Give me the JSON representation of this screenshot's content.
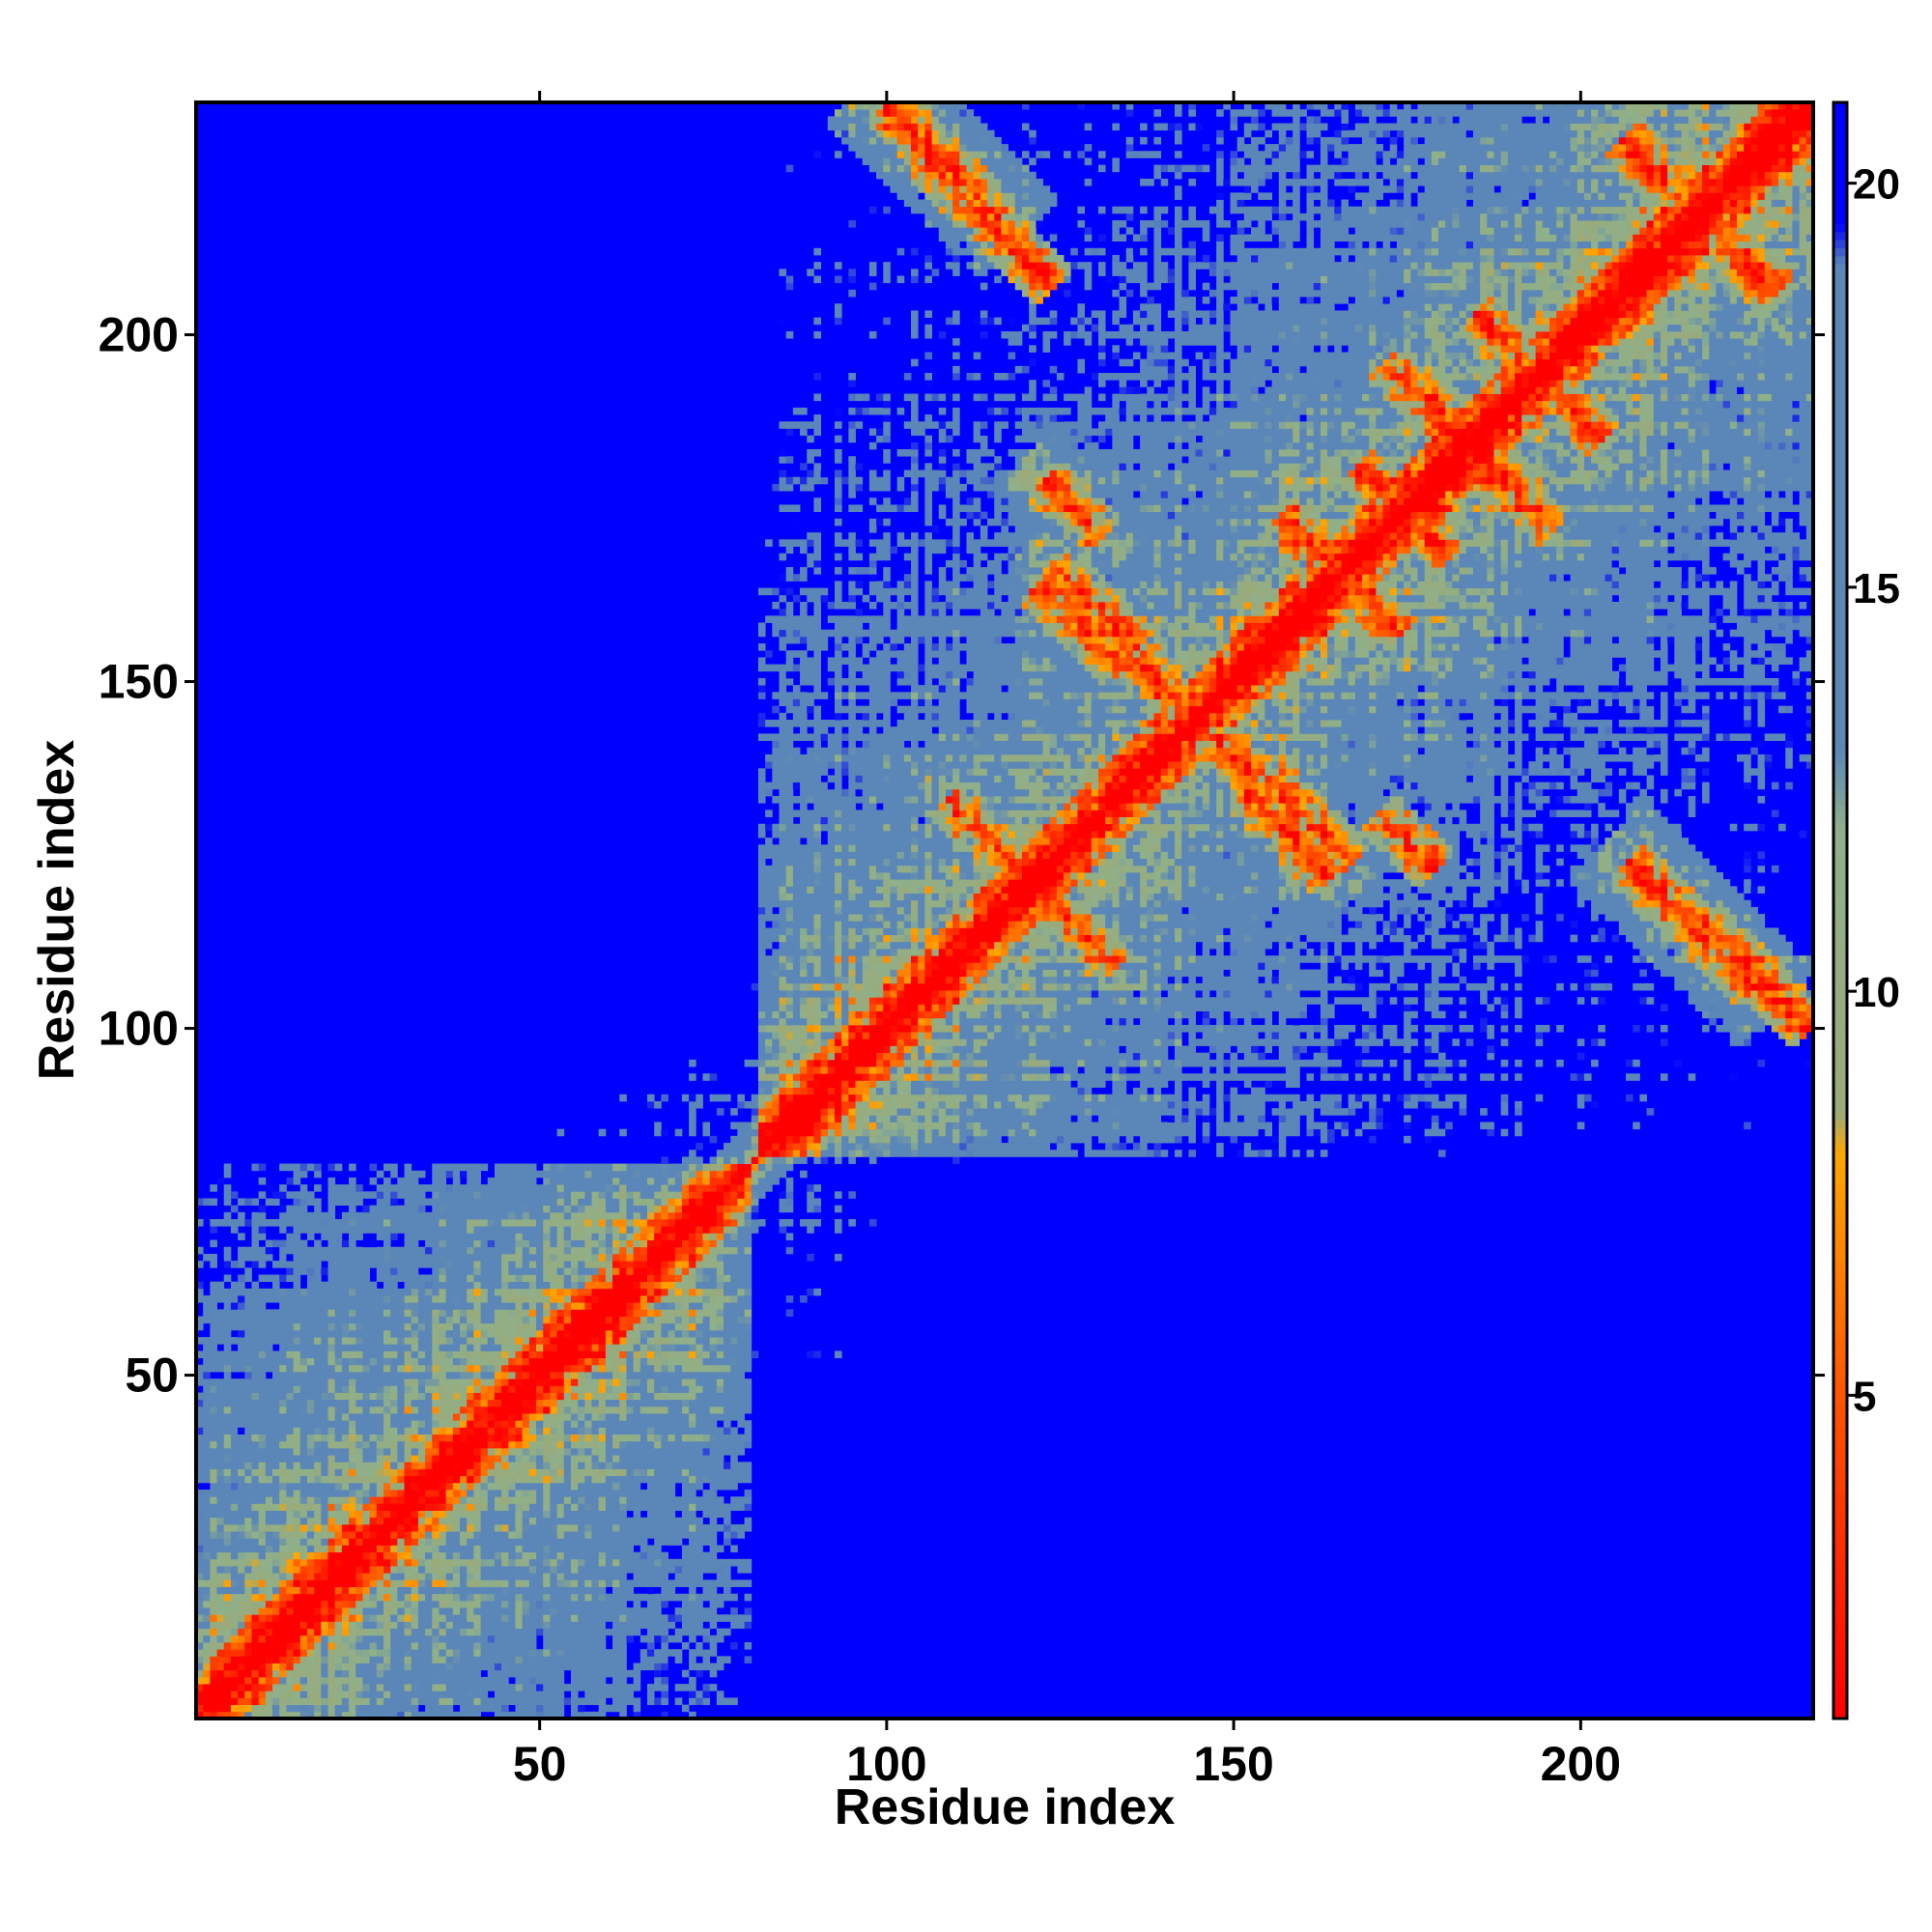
{
  "chart_data": {
    "type": "heatmap",
    "title": "",
    "xlabel": "Residue index",
    "ylabel": "Residue index",
    "n_residues": 233,
    "xlim": [
      1,
      233
    ],
    "ylim": [
      1,
      233
    ],
    "x_ticks": [
      50,
      100,
      150,
      200
    ],
    "y_ticks": [
      50,
      100,
      150,
      200
    ],
    "colorbar": {
      "ticks": [
        5,
        10,
        15,
        20
      ],
      "range": [
        1,
        21
      ],
      "stops": [
        {
          "value": 1,
          "color": "#ff0000"
        },
        {
          "value": 5,
          "color": "#ff5500"
        },
        {
          "value": 8,
          "color": "#ffa500"
        },
        {
          "value": 8.5,
          "color": "#9aaa7a"
        },
        {
          "value": 12,
          "color": "#8fb08a"
        },
        {
          "value": 13,
          "color": "#5b86b8"
        },
        {
          "value": 19,
          "color": "#5b86b8"
        },
        {
          "value": 19.5,
          "color": "#0000ff"
        },
        {
          "value": 21,
          "color": "#0000ff"
        }
      ]
    },
    "colors": {
      "contact": "#ff0000",
      "near": "#ffa500",
      "mid": "#a4b894",
      "far": "#5b86b8",
      "background": "#0000ff"
    },
    "domains": [
      [
        1,
        80
      ],
      [
        82,
        233
      ]
    ],
    "antiparallel_contacts": [
      {
        "center": [
          121,
          121
        ],
        "half_length": 12
      },
      {
        "center": [
          108,
          225
        ],
        "half_length": 8
      },
      {
        "center": [
          216,
          218
        ],
        "half_length": 10
      },
      {
        "center": [
          185,
          183
        ],
        "half_length": 11
      },
      {
        "center": [
          195,
          193
        ],
        "half_length": 8
      },
      {
        "center": [
          166,
          165
        ],
        "half_length": 8
      },
      {
        "center": [
          175,
          174
        ],
        "half_length": 6
      },
      {
        "center": [
          130,
          161
        ],
        "half_length": 6
      },
      {
        "center": [
          127,
          175
        ],
        "half_length": 4
      },
      {
        "center": [
          158,
          128
        ],
        "half_length": 6
      },
      {
        "center": [
          216,
          115
        ],
        "half_length": 9
      },
      {
        "center": [
          145,
          144
        ],
        "half_length": 8
      }
    ],
    "grid": false,
    "legend": "colorbar-right"
  }
}
